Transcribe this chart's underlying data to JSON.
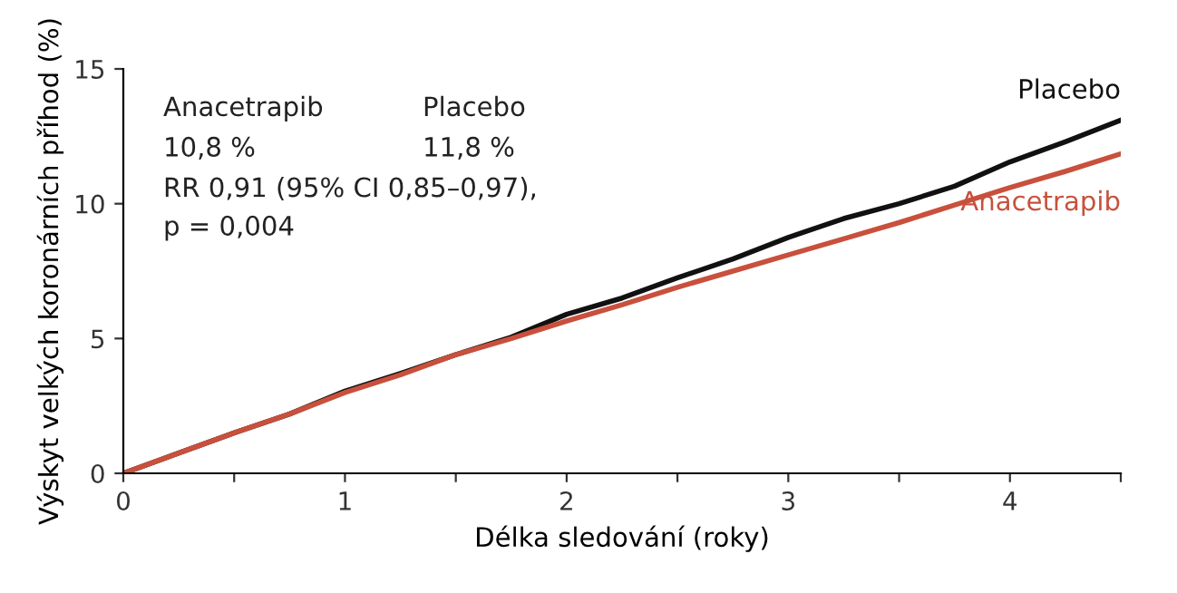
{
  "chart_data": {
    "type": "line",
    "xlabel": "Délka sledování (roky)",
    "ylabel": "Výskyt velkých koronárních příhod (%)",
    "xlim": [
      0,
      4.5
    ],
    "xticks": [
      0,
      {
        "value": 0.5,
        "label": null
      },
      1,
      {
        "value": 1.5,
        "label": null
      },
      2,
      {
        "value": 2.5,
        "label": null
      },
      3,
      {
        "value": 3.5,
        "label": null
      },
      4,
      {
        "value": 4.5,
        "label": null
      }
    ],
    "ylim": [
      0,
      15
    ],
    "yticks": [
      0,
      5,
      10,
      15
    ],
    "grid": false,
    "legend": false,
    "annotations": [
      "Anacetrapib",
      "Placebo",
      "10,8 %",
      "11,8 %",
      "RR 0,91 (95% CI 0,85–0,97),",
      "p = 0,004"
    ],
    "series": [
      {
        "name": "Placebo",
        "color": "#111111",
        "x": [
          0,
          0.25,
          0.5,
          0.75,
          1,
          1.25,
          1.5,
          1.75,
          2,
          2.25,
          2.5,
          2.75,
          3,
          3.25,
          3.5,
          3.75,
          4,
          4.25,
          4.5
        ],
        "values": [
          0,
          0.75,
          1.5,
          2.2,
          3.05,
          3.7,
          4.4,
          5.05,
          5.9,
          6.5,
          7.25,
          7.95,
          8.75,
          9.45,
          10.0,
          10.65,
          11.55,
          12.3,
          13.1
        ]
      },
      {
        "name": "Anacetrapib",
        "color": "#c8503c",
        "x": [
          0,
          0.25,
          0.5,
          0.75,
          1,
          1.25,
          1.5,
          1.75,
          2,
          2.25,
          2.5,
          2.75,
          3,
          3.25,
          3.5,
          3.75,
          4,
          4.25,
          4.5
        ],
        "values": [
          0,
          0.75,
          1.5,
          2.2,
          3.0,
          3.65,
          4.4,
          5.0,
          5.65,
          6.25,
          6.9,
          7.5,
          8.1,
          8.7,
          9.3,
          9.95,
          10.6,
          11.2,
          11.85
        ]
      }
    ]
  }
}
